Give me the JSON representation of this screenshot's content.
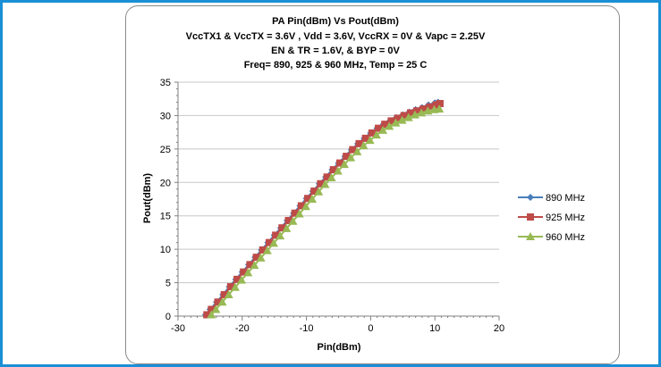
{
  "colors": {
    "frame_border": "#1a8fd6",
    "card_border": "#8a8a8a",
    "gridline": "#c8c8c8",
    "axis": "#808080"
  },
  "chart_data": {
    "type": "line",
    "title_lines": [
      "PA Pin(dBm) Vs Pout(dBm)",
      "VccTX1 & VccTX = 3.6V , Vdd  = 3.6V, VccRX = 0V & Vapc = 2.25V",
      "EN & TR = 1.6V, & BYP = 0V",
      "Freq= 890, 925 & 960 MHz, Temp = 25 C"
    ],
    "xlabel": "Pin(dBm)",
    "ylabel": "Pout(dBm)",
    "xlim": [
      -30,
      20
    ],
    "ylim": [
      0,
      35
    ],
    "xticks": [
      "-30",
      "-20",
      "-10",
      "0",
      "10",
      "20"
    ],
    "yticks": [
      "0",
      "5",
      "10",
      "15",
      "20",
      "25",
      "30",
      "35"
    ],
    "grid": "horizontal",
    "legend_position": "right",
    "series": [
      {
        "name": "890 MHz",
        "color": "#4a7ebb",
        "marker": "diamond",
        "points": [
          [
            -25.7,
            0.2
          ],
          [
            -25,
            1.0
          ],
          [
            -24,
            2.1
          ],
          [
            -23,
            3.2
          ],
          [
            -22,
            4.4
          ],
          [
            -21,
            5.5
          ],
          [
            -20,
            6.6
          ],
          [
            -19,
            7.7
          ],
          [
            -18,
            8.8
          ],
          [
            -17,
            9.9
          ],
          [
            -16,
            11.0
          ],
          [
            -15,
            12.1
          ],
          [
            -14,
            13.2
          ],
          [
            -13,
            14.3
          ],
          [
            -12,
            15.4
          ],
          [
            -11,
            16.5
          ],
          [
            -10,
            17.6
          ],
          [
            -9,
            18.7
          ],
          [
            -8,
            19.8
          ],
          [
            -7,
            20.8
          ],
          [
            -6,
            21.9
          ],
          [
            -5,
            22.9
          ],
          [
            -4,
            23.9
          ],
          [
            -3,
            24.9
          ],
          [
            -2,
            25.8
          ],
          [
            -1,
            26.6
          ],
          [
            0,
            27.4
          ],
          [
            1,
            28.1
          ],
          [
            2,
            28.7
          ],
          [
            3,
            29.2
          ],
          [
            4,
            29.7
          ],
          [
            5,
            30.1
          ],
          [
            6,
            30.5
          ],
          [
            7,
            30.9
          ],
          [
            8,
            31.2
          ],
          [
            9,
            31.6
          ],
          [
            10,
            31.9
          ],
          [
            10.5,
            32.0
          ]
        ]
      },
      {
        "name": "925 MHz",
        "color": "#be4b48",
        "marker": "square",
        "points": [
          [
            -25.5,
            0.2
          ],
          [
            -24.8,
            1.0
          ],
          [
            -23.8,
            2.1
          ],
          [
            -22.8,
            3.2
          ],
          [
            -21.8,
            4.4
          ],
          [
            -20.8,
            5.5
          ],
          [
            -19.8,
            6.6
          ],
          [
            -18.8,
            7.7
          ],
          [
            -17.8,
            8.8
          ],
          [
            -16.8,
            9.9
          ],
          [
            -15.8,
            11.0
          ],
          [
            -14.8,
            12.1
          ],
          [
            -13.8,
            13.2
          ],
          [
            -12.8,
            14.3
          ],
          [
            -11.8,
            15.4
          ],
          [
            -10.8,
            16.5
          ],
          [
            -9.8,
            17.6
          ],
          [
            -8.8,
            18.7
          ],
          [
            -7.8,
            19.8
          ],
          [
            -6.8,
            20.8
          ],
          [
            -5.8,
            21.9
          ],
          [
            -4.8,
            22.9
          ],
          [
            -3.8,
            23.9
          ],
          [
            -2.8,
            24.9
          ],
          [
            -1.8,
            25.8
          ],
          [
            -0.8,
            26.6
          ],
          [
            0.2,
            27.4
          ],
          [
            1.2,
            28.1
          ],
          [
            2.2,
            28.7
          ],
          [
            3.2,
            29.2
          ],
          [
            4.2,
            29.6
          ],
          [
            5.2,
            30.0
          ],
          [
            6.2,
            30.4
          ],
          [
            7.2,
            30.7
          ],
          [
            8.2,
            31.0
          ],
          [
            9.2,
            31.3
          ],
          [
            10.2,
            31.6
          ],
          [
            10.8,
            31.8
          ]
        ]
      },
      {
        "name": "960 MHz",
        "color": "#98b954",
        "marker": "triangle",
        "points": [
          [
            -24.8,
            0.2
          ],
          [
            -24.1,
            1.0
          ],
          [
            -23.1,
            2.1
          ],
          [
            -22.1,
            3.2
          ],
          [
            -21.1,
            4.3
          ],
          [
            -20.1,
            5.4
          ],
          [
            -19.1,
            6.5
          ],
          [
            -18.1,
            7.6
          ],
          [
            -17.1,
            8.7
          ],
          [
            -16.1,
            9.8
          ],
          [
            -15.1,
            10.9
          ],
          [
            -14.1,
            12.0
          ],
          [
            -13.1,
            13.1
          ],
          [
            -12.1,
            14.2
          ],
          [
            -11.1,
            15.3
          ],
          [
            -10.1,
            16.4
          ],
          [
            -9.1,
            17.5
          ],
          [
            -8.1,
            18.6
          ],
          [
            -7.1,
            19.7
          ],
          [
            -6.1,
            20.7
          ],
          [
            -5.1,
            21.7
          ],
          [
            -4.1,
            22.7
          ],
          [
            -3.1,
            23.7
          ],
          [
            -2.1,
            24.6
          ],
          [
            -1.1,
            25.5
          ],
          [
            -0.1,
            26.3
          ],
          [
            0.9,
            27.1
          ],
          [
            1.9,
            27.8
          ],
          [
            2.9,
            28.4
          ],
          [
            3.9,
            28.9
          ],
          [
            4.9,
            29.3
          ],
          [
            5.9,
            29.7
          ],
          [
            6.9,
            30.1
          ],
          [
            7.9,
            30.4
          ],
          [
            8.9,
            30.7
          ],
          [
            9.9,
            30.9
          ],
          [
            10.7,
            31.0
          ]
        ]
      }
    ]
  }
}
